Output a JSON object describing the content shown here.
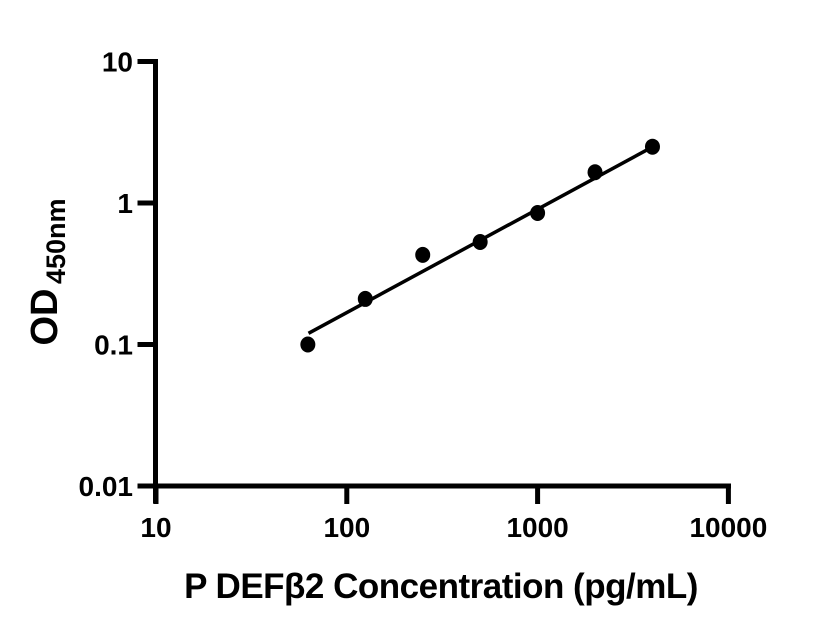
{
  "chart_data": {
    "type": "scatter",
    "title": "",
    "xlabel": "P DEFβ2 Concentration (pg/mL)",
    "ylabel_main": "OD",
    "ylabel_sub": "450nm",
    "x_scale": "log",
    "y_scale": "log",
    "xlim": [
      10,
      10000
    ],
    "ylim": [
      0.01,
      10
    ],
    "x_ticks": [
      10,
      100,
      1000,
      10000
    ],
    "x_tick_labels": [
      "10",
      "100",
      "1000",
      "10000"
    ],
    "y_ticks": [
      10,
      1,
      0.1,
      0.01
    ],
    "y_tick_labels": [
      "10",
      "1",
      "0.1",
      "0.01"
    ],
    "grid": false,
    "legend": false,
    "points": [
      {
        "x": 62.5,
        "y": 0.1
      },
      {
        "x": 125,
        "y": 0.21
      },
      {
        "x": 250,
        "y": 0.43
      },
      {
        "x": 500,
        "y": 0.53
      },
      {
        "x": 1000,
        "y": 0.85
      },
      {
        "x": 2000,
        "y": 1.65
      },
      {
        "x": 4000,
        "y": 2.5
      }
    ],
    "trend_line": {
      "x1": 63,
      "y1": 0.12,
      "x2": 4000,
      "y2": 2.49
    },
    "colors": {
      "foreground": "#000000",
      "background": "#ffffff"
    }
  }
}
